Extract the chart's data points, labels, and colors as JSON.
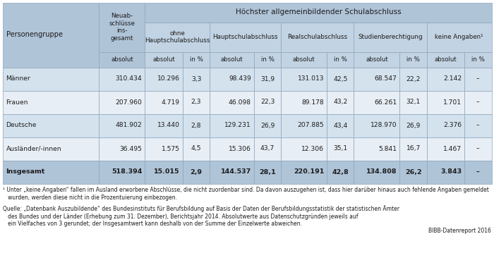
{
  "header_span": "Höchster allgemeinbildender Schulabschluss",
  "subheaders": [
    "ohne\nHauptschulabschluss",
    "Hauptschulabschluss",
    "Realschulabschluss",
    "Studienberechtigung",
    "keine Angaben¹"
  ],
  "sub_col_labels": [
    "absolut",
    "in %",
    "absolut",
    "in %",
    "absolut",
    "in %",
    "absolut",
    "in %",
    "absolut",
    "in %"
  ],
  "rows": [
    {
      "name": "Männer",
      "total": "310.434",
      "vals": [
        "10.296",
        "3,3",
        "98.439",
        "31,9",
        "131.013",
        "42,5",
        "68.547",
        "22,2",
        "2.142",
        "–"
      ],
      "bold": false
    },
    {
      "name": "Frauen",
      "total": "207.960",
      "vals": [
        "4.719",
        "2,3",
        "46.098",
        "22,3",
        "89.178",
        "43,2",
        "66.261",
        "32,1",
        "1.701",
        "–"
      ],
      "bold": false
    },
    {
      "name": "Deutsche",
      "total": "481.902",
      "vals": [
        "13.440",
        "2,8",
        "129.231",
        "26,9",
        "207.885",
        "43,4",
        "128.970",
        "26,9",
        "2.376",
        "–"
      ],
      "bold": false
    },
    {
      "name": "Ausländer/-innen",
      "total": "36.495",
      "vals": [
        "1.575",
        "4,5",
        "15.306",
        "43,7",
        "12.306",
        "35,1",
        "5.841",
        "16,7",
        "1.467",
        "–"
      ],
      "bold": false
    },
    {
      "name": "Insgesamt",
      "total": "518.394",
      "vals": [
        "15.015",
        "2,9",
        "144.537",
        "28,1",
        "220.191",
        "42,8",
        "134.808",
        "26,2",
        "3.843",
        "–"
      ],
      "bold": true
    }
  ],
  "footnote1": "¹ Unter „keine Angaben“ fallen im Ausland erworbene Abschlüsse, die nicht zuordenbar sind. Da davon auszugehen ist, dass hier darüber hinaus auch fehlende Angaben gemeldet\n   wurden, werden diese nicht in die Prozentuierung einbezogen.",
  "footnote2": "Quelle: „Datenbank Auszubildende“ des Bundesinstituts für Berufsbildung auf Basis der Daten der Berufsbildungsstatistik der statistischen Ämter\n   des Bundes und der Länder (Erhebung zum 31. Dezember), Berichtsjahr 2014. Absolutwerte aus Datenschutzgründen jeweils auf\n   ein Vielfaches von 3 gerundet; der Insgesamtwert kann deshalb von der Summe der Einzelwerte abweichen.",
  "source_right": "BIBB-Datenreport 2016",
  "bg_header": "#b0c4d8",
  "bg_subheader": "#c2d3e3",
  "bg_row_odd": "#d4e2ee",
  "bg_row_even": "#e8eef5",
  "bg_total": "#b0c4d8",
  "border_color": "#8aa5bc",
  "text_dark": "#1c1c1c"
}
